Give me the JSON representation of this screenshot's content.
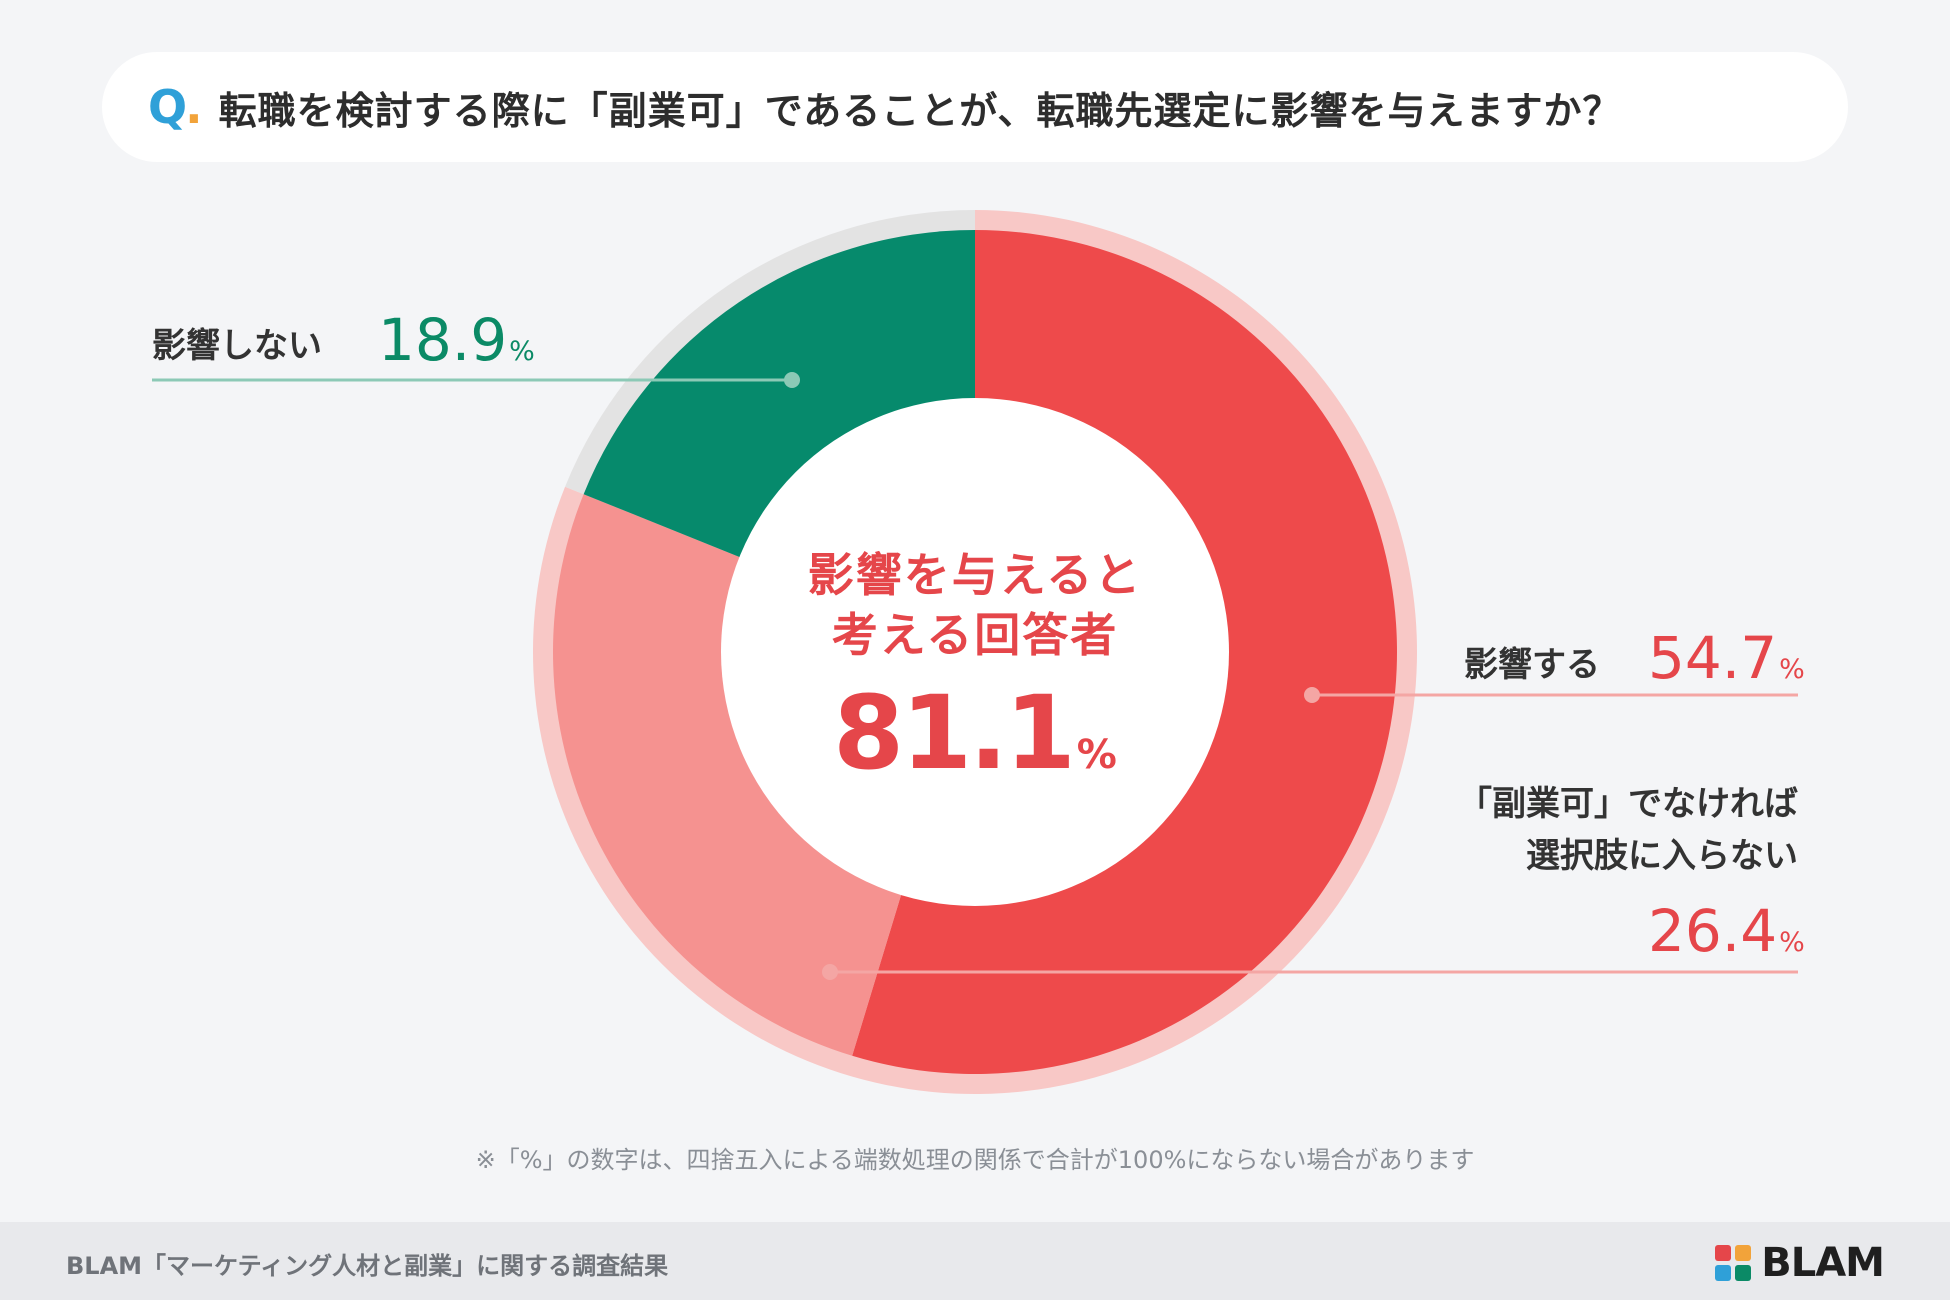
{
  "question": {
    "mark": "Q",
    "mark_dot": ".",
    "text": "転職を検討する際に「副業可」であることが、転職先選定に影響を与えますか？"
  },
  "chart_data": {
    "type": "pie",
    "segments": [
      {
        "label": "影響する",
        "value": 54.7,
        "unit": "%",
        "color": "#ee4a4b"
      },
      {
        "label_lines": [
          "「副業可」でなければ",
          "選択肢に入らない"
        ],
        "value": 26.4,
        "unit": "%",
        "color": "#f59290"
      },
      {
        "label": "影響しない",
        "value": 18.9,
        "unit": "%",
        "color": "#068a6c"
      }
    ],
    "outer_groups": [
      {
        "name": "影響を与えると考える回答者",
        "value": 81.1,
        "color": "#f8c8c6"
      },
      {
        "name": "影響しない",
        "value": 18.9,
        "color": "#e3e3e3"
      }
    ],
    "center": {
      "line1": "影響を与えると",
      "line2": "考える回答者",
      "value": "81.1",
      "unit": "%"
    }
  },
  "note": "※「%」の数字は、四捨五入による端数処理の関係で合計が100%にならない場合があります",
  "footer": {
    "source": "BLAM「マーケティング人材と副業」に関する調査結果",
    "logo_text": "BLAM",
    "logo_colors": [
      "#e5464a",
      "#f2a33a",
      "#2fa0d8",
      "#0b8a66"
    ]
  }
}
